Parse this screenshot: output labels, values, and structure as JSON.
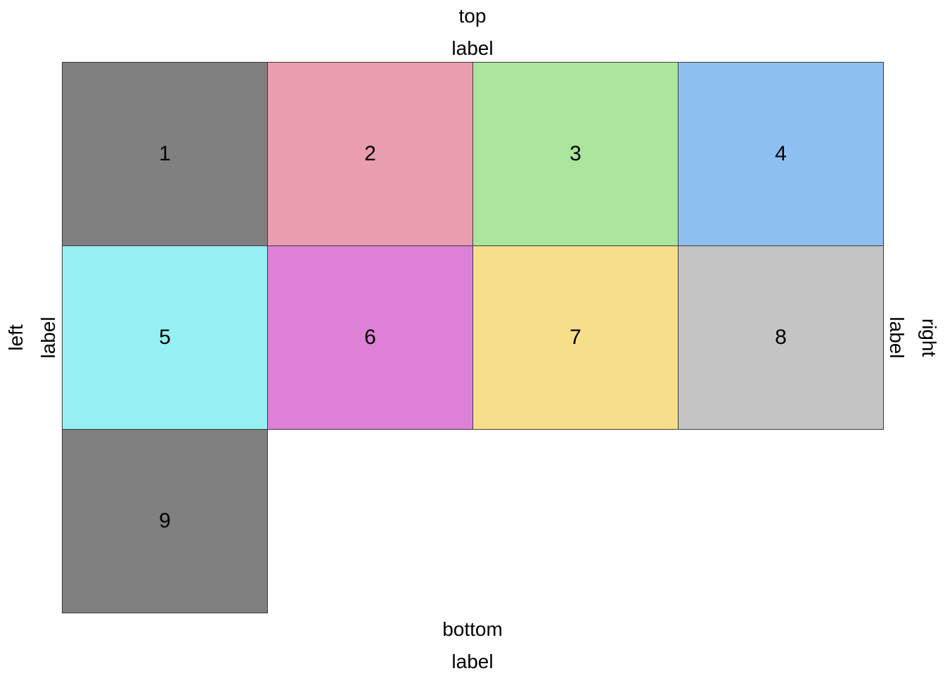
{
  "labels": {
    "top": [
      "top",
      "label"
    ],
    "bottom": [
      "bottom",
      "label"
    ],
    "left": [
      "left",
      "label"
    ],
    "right": [
      "right",
      "label"
    ]
  },
  "grid": {
    "columns": 4,
    "cells": [
      {
        "label": "1",
        "color": "#808080"
      },
      {
        "label": "2",
        "color": "#ea9daf"
      },
      {
        "label": "3",
        "color": "#a9e59d"
      },
      {
        "label": "4",
        "color": "#8dc0f0"
      },
      {
        "label": "5",
        "color": "#96eff0"
      },
      {
        "label": "6",
        "color": "#df80d7"
      },
      {
        "label": "7",
        "color": "#f7de8b"
      },
      {
        "label": "8",
        "color": "#c4c4c4"
      },
      {
        "label": "9",
        "color": "#808080"
      }
    ]
  }
}
